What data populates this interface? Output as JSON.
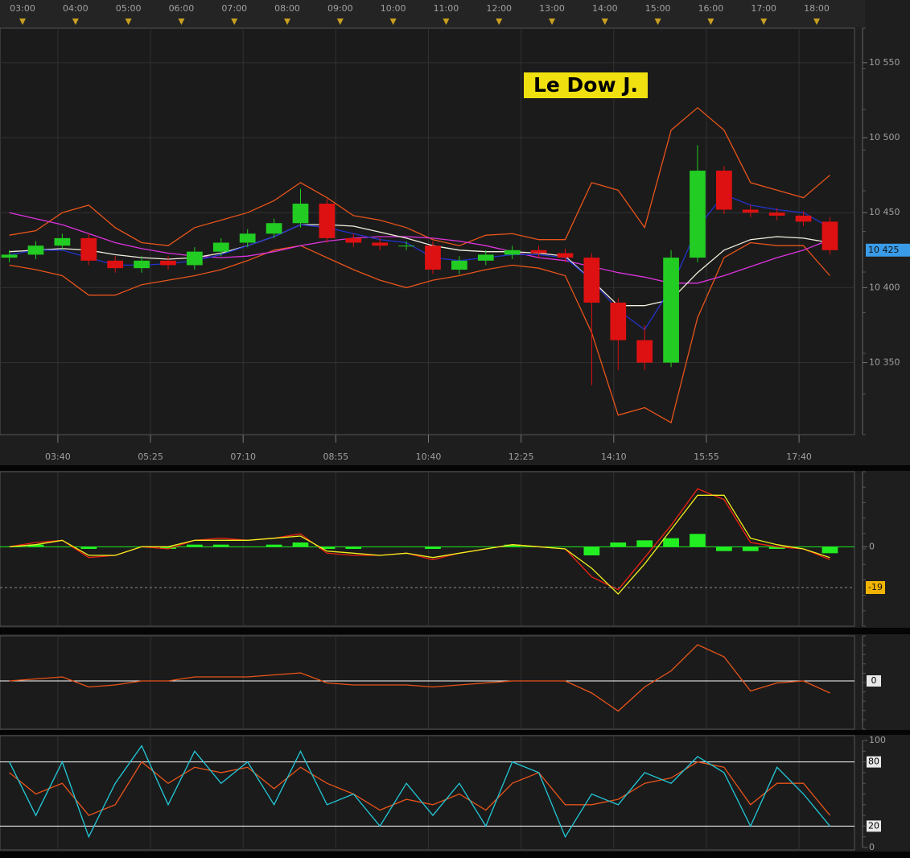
{
  "chart_data": [
    {
      "type": "candlestick",
      "title": "Le Dow J.",
      "x": [
        2.75,
        3.25,
        3.75,
        4.25,
        4.75,
        5.25,
        5.75,
        6.25,
        6.75,
        7.25,
        7.75,
        8.25,
        8.75,
        9.25,
        9.75,
        10.25,
        10.75,
        11.25,
        11.75,
        12.25,
        12.75,
        13.25,
        13.75,
        14.25,
        14.75,
        15.25,
        15.75,
        16.25,
        16.75,
        17.25,
        17.75,
        18.25
      ],
      "open": [
        10420,
        10422,
        10428,
        10433,
        10418,
        10413,
        10418,
        10415,
        10424,
        10430,
        10436,
        10443,
        10456,
        10433,
        10430,
        10428,
        10428,
        10412,
        10418,
        10422,
        10425,
        10423,
        10420,
        10390,
        10365,
        10350,
        10420,
        10478,
        10452,
        10450,
        10448,
        10444
      ],
      "high": [
        10425,
        10431,
        10436,
        10436,
        10421,
        10421,
        10421,
        10427,
        10433,
        10439,
        10446,
        10466,
        10459,
        10436,
        10433,
        10431,
        10431,
        10421,
        10425,
        10428,
        10428,
        10426,
        10423,
        10393,
        10375,
        10425,
        10495,
        10481,
        10455,
        10453,
        10451,
        10447
      ],
      "low": [
        10417,
        10419,
        10425,
        10415,
        10410,
        10410,
        10412,
        10412,
        10421,
        10427,
        10433,
        10440,
        10430,
        10427,
        10425,
        10425,
        10409,
        10409,
        10415,
        10419,
        10420,
        10417,
        10335,
        10345,
        10345,
        10347,
        10417,
        10449,
        10447,
        10445,
        10441,
        10422
      ],
      "close": [
        10422,
        10428,
        10433,
        10418,
        10413,
        10418,
        10415,
        10424,
        10430,
        10436,
        10443,
        10456,
        10433,
        10430,
        10428,
        10428,
        10412,
        10418,
        10422,
        10425,
        10423,
        10420,
        10390,
        10365,
        10350,
        10420,
        10478,
        10452,
        10450,
        10448,
        10444,
        10425
      ],
      "up_color": "#22cc22",
      "down_color": "#dd1111",
      "series": [
        {
          "color": "#e8541a",
          "values": [
            10435,
            10438,
            10450,
            10455,
            10440,
            10430,
            10428,
            10440,
            10445,
            10450,
            10458,
            10470,
            10460,
            10448,
            10445,
            10440,
            10432,
            10428,
            10435,
            10436,
            10432,
            10432,
            10470,
            10465,
            10440,
            10505,
            10520,
            10505,
            10470,
            10465,
            10460,
            10475
          ]
        },
        {
          "color": "#e8541a",
          "values": [
            10415,
            10412,
            10408,
            10395,
            10395,
            10402,
            10405,
            10408,
            10412,
            10418,
            10425,
            10428,
            10420,
            10412,
            10405,
            10400,
            10405,
            10408,
            10412,
            10415,
            10413,
            10408,
            10370,
            10315,
            10320,
            10310,
            10380,
            10420,
            10430,
            10428,
            10428,
            10408
          ]
        },
        {
          "color": "#dd33dd",
          "values": [
            10450,
            10446,
            10442,
            10436,
            10430,
            10426,
            10423,
            10421,
            10420,
            10421,
            10424,
            10428,
            10431,
            10433,
            10434,
            10434,
            10433,
            10431,
            10428,
            10424,
            10420,
            10418,
            10414,
            10410,
            10407,
            10403,
            10403,
            10408,
            10414,
            10420,
            10425,
            10432
          ]
        },
        {
          "color": "#f4f0e0",
          "values": [
            10424,
            10425,
            10426,
            10425,
            10422,
            10420,
            10419,
            10420,
            10423,
            10428,
            10434,
            10442,
            10442,
            10441,
            10437,
            10433,
            10428,
            10425,
            10424,
            10424,
            10423,
            10421,
            10405,
            10388,
            10388,
            10392,
            10410,
            10425,
            10432,
            10434,
            10433,
            10430
          ]
        },
        {
          "color": "#2233cc",
          "values": [
            10422,
            10425,
            10425,
            10420,
            10415,
            10415,
            10416,
            10418,
            10422,
            10428,
            10434,
            10442,
            10440,
            10436,
            10432,
            10430,
            10420,
            10418,
            10420,
            10422,
            10422,
            10420,
            10405,
            10385,
            10372,
            10400,
            10440,
            10462,
            10455,
            10452,
            10450,
            10440
          ]
        }
      ],
      "xlim": [
        2.574,
        18.714
      ],
      "xticks": [
        {
          "value": 3.6667,
          "label": "03:40"
        },
        {
          "value": 5.4167,
          "label": "05:25"
        },
        {
          "value": 7.1667,
          "label": "07:10"
        },
        {
          "value": 8.9167,
          "label": "08:55"
        },
        {
          "value": 10.6667,
          "label": "10:40"
        },
        {
          "value": 12.4167,
          "label": "12:25"
        },
        {
          "value": 14.1667,
          "label": "14:10"
        },
        {
          "value": 15.9167,
          "label": "15:55"
        },
        {
          "value": 17.6667,
          "label": "17:40"
        }
      ],
      "top_xticks": [
        {
          "value": 3,
          "label": "03:00"
        },
        {
          "value": 4,
          "label": "04:00"
        },
        {
          "value": 5,
          "label": "05:00"
        },
        {
          "value": 6,
          "label": "06:00"
        },
        {
          "value": 7,
          "label": "07:00"
        },
        {
          "value": 8,
          "label": "08:00"
        },
        {
          "value": 9,
          "label": "09:00"
        },
        {
          "value": 10,
          "label": "10:00"
        },
        {
          "value": 11,
          "label": "11:00"
        },
        {
          "value": 12,
          "label": "12:00"
        },
        {
          "value": 13,
          "label": "13:00"
        },
        {
          "value": 14,
          "label": "14:00"
        },
        {
          "value": 15,
          "label": "15:00"
        },
        {
          "value": 16,
          "label": "16:00"
        },
        {
          "value": 17,
          "label": "17:00"
        },
        {
          "value": 18,
          "label": "18:00"
        }
      ],
      "ylim": [
        10302,
        10573
      ],
      "yticks": [
        {
          "value": 10350,
          "label": "10 350"
        },
        {
          "value": 10400,
          "label": "10 400"
        },
        {
          "value": 10450,
          "label": "10 450"
        },
        {
          "value": 10500,
          "label": "10 500"
        },
        {
          "value": 10550,
          "label": "10 550"
        }
      ],
      "markers": [
        {
          "value": 10425,
          "label": "10 425"
        }
      ],
      "marker_color": "#3a9be8",
      "grid": true
    },
    {
      "type": "combo",
      "series": [
        {
          "style": "bar",
          "color": "#22ee22",
          "values": [
            0,
            1,
            0,
            -1,
            0,
            0,
            -1,
            1,
            1,
            0,
            1,
            2,
            -1,
            -1,
            0,
            0,
            -1,
            0,
            0,
            1,
            0,
            0,
            -4,
            2,
            3,
            4,
            6,
            -2,
            -2,
            -1,
            0,
            -3
          ]
        },
        {
          "style": "line",
          "color": "#ee2211",
          "values": [
            0,
            2,
            3,
            -5,
            -4,
            0,
            -1,
            3,
            4,
            3,
            4,
            6,
            -3,
            -4,
            -4,
            -3,
            -6,
            -3,
            -1,
            1,
            0,
            -1,
            -14,
            -20,
            -5,
            10,
            27,
            22,
            2,
            0,
            -1,
            -6
          ]
        },
        {
          "style": "line",
          "color": "#f0f020",
          "values": [
            0,
            1,
            3,
            -4,
            -4,
            0,
            0,
            3,
            3,
            3,
            4,
            5,
            -2,
            -3,
            -4,
            -3,
            -5,
            -3,
            -1,
            1,
            0,
            -1,
            -10,
            -22,
            -8,
            8,
            24,
            24,
            4,
            1,
            -1,
            -5
          ]
        }
      ],
      "ylim": [
        -37,
        35
      ],
      "yticks": [
        0
      ],
      "markers": [
        -19
      ],
      "marker_color": "#f0b400",
      "marker_line": "dashed"
    },
    {
      "type": "line",
      "series": [
        {
          "color": "#e8541a",
          "values": [
            0,
            1,
            2,
            -3,
            -2,
            0,
            0,
            2,
            2,
            2,
            3,
            4,
            -1,
            -2,
            -2,
            -2,
            -3,
            -2,
            -1,
            0,
            0,
            0,
            -6,
            -15,
            -3,
            5,
            18,
            12,
            -5,
            -1,
            0,
            -6
          ]
        }
      ],
      "ylim": [
        -24,
        22.4
      ],
      "hlines": [
        0
      ],
      "hline_color": "#ffffff"
    },
    {
      "type": "line",
      "series": [
        {
          "color": "#e8541a",
          "values": [
            70,
            50,
            60,
            30,
            40,
            80,
            60,
            75,
            70,
            75,
            55,
            75,
            60,
            50,
            35,
            45,
            40,
            50,
            35,
            60,
            70,
            40,
            40,
            45,
            60,
            65,
            80,
            75,
            40,
            60,
            60,
            30
          ]
        },
        {
          "color": "#22c8d8",
          "values": [
            80,
            30,
            80,
            10,
            60,
            95,
            40,
            90,
            60,
            80,
            40,
            90,
            40,
            50,
            20,
            60,
            30,
            60,
            20,
            80,
            70,
            10,
            50,
            40,
            70,
            60,
            85,
            70,
            20,
            75,
            50,
            20
          ]
        }
      ],
      "ylim": [
        0,
        100
      ],
      "yticks": [
        0,
        100
      ],
      "hlines": [
        20,
        80
      ],
      "hline_color": "#ffffff"
    }
  ]
}
